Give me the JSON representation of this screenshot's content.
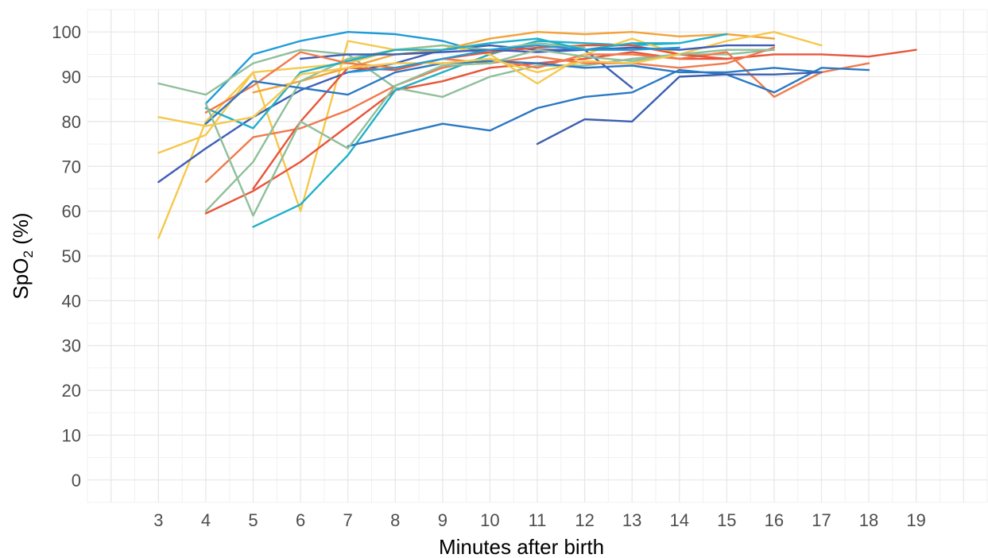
{
  "chart_data": {
    "type": "line",
    "xlabel": "Minutes after birth",
    "ylabel_main": "SpO",
    "ylabel_sub": "2",
    "ylabel_suffix": " (%)",
    "xlim": [
      1.5,
      20.5
    ],
    "ylim": [
      -5,
      105
    ],
    "x_ticks": [
      3,
      4,
      5,
      6,
      7,
      8,
      9,
      10,
      11,
      12,
      13,
      14,
      15,
      16,
      17,
      18,
      19
    ],
    "y_ticks": [
      0,
      10,
      20,
      30,
      40,
      50,
      60,
      70,
      80,
      90,
      100
    ],
    "grid": true,
    "legend": "none",
    "series": [
      {
        "color": "#1f9bd7",
        "x": [
          4,
          5,
          6,
          7,
          8,
          9,
          10
        ],
        "y": [
          84,
          95,
          98,
          100,
          99.5,
          98,
          95
        ]
      },
      {
        "color": "#f5c84c",
        "x": [
          3,
          4,
          5,
          6,
          7,
          8,
          9
        ],
        "y": [
          54,
          80,
          91,
          60,
          98,
          96,
          97
        ]
      },
      {
        "color": "#e8553a",
        "x": [
          4,
          5,
          6,
          7,
          8,
          9,
          10,
          11,
          12,
          13,
          14,
          15,
          16,
          17,
          18,
          19
        ],
        "y": [
          59.5,
          64.5,
          71,
          79,
          87,
          89,
          92,
          93,
          94,
          95.5,
          94,
          94,
          95,
          95,
          94.5,
          96
        ]
      },
      {
        "color": "#3f5fb5",
        "x": [
          3,
          4,
          5,
          6,
          7,
          8,
          9,
          10,
          11,
          12,
          13
        ],
        "y": [
          66.5,
          74,
          81,
          87,
          91,
          93,
          96,
          97,
          96,
          96,
          87.5
        ]
      },
      {
        "color": "#8fbf9a",
        "x": [
          3,
          4,
          5,
          6,
          7,
          8,
          9,
          10,
          11,
          12,
          13,
          14,
          15,
          16
        ],
        "y": [
          88.5,
          86,
          93,
          96,
          95,
          87.5,
          85.5,
          90,
          92.5,
          92.5,
          94,
          95,
          95,
          96
        ]
      },
      {
        "color": "#f07a4c",
        "x": [
          4,
          5,
          6,
          7,
          8,
          9,
          10,
          11,
          12,
          13,
          14,
          15,
          16,
          17,
          18
        ],
        "y": [
          66.5,
          76.5,
          78.5,
          82.5,
          88,
          92,
          94,
          92,
          95,
          95,
          94,
          95.5,
          85.5,
          91,
          93
        ]
      },
      {
        "color": "#1fb0c8",
        "x": [
          5,
          6,
          7,
          8,
          9,
          10,
          11,
          12,
          13,
          14
        ],
        "y": [
          56.5,
          61.5,
          72.5,
          87,
          91,
          95,
          98,
          97.5,
          97,
          97.5
        ]
      },
      {
        "color": "#2b78c4",
        "x": [
          7,
          8,
          9,
          10,
          11,
          12,
          13,
          14,
          15,
          16,
          17,
          18
        ],
        "y": [
          74.5,
          77,
          79.5,
          78,
          83,
          85.5,
          86.5,
          91.5,
          90.5,
          86.5,
          92,
          91.5
        ]
      },
      {
        "color": "#3a5fb0",
        "x": [
          11,
          12,
          13,
          14,
          15,
          16,
          17
        ],
        "y": [
          75,
          80.5,
          80,
          90,
          90.5,
          90.5,
          91
        ]
      },
      {
        "color": "#f2a33a",
        "x": [
          5,
          6,
          7,
          8,
          9,
          10,
          11,
          12,
          13,
          14,
          15,
          16
        ],
        "y": [
          86.5,
          89,
          92,
          95,
          96,
          98.5,
          100,
          99.5,
          100,
          99,
          99.5,
          98.5
        ]
      },
      {
        "color": "#f5c84c",
        "x": [
          3,
          4,
          5,
          6,
          7,
          8,
          9,
          10,
          11,
          12,
          13,
          14,
          15,
          16,
          17
        ],
        "y": [
          73,
          77,
          91,
          92,
          93,
          96,
          97,
          95,
          88.5,
          95,
          98.5,
          95,
          98,
          100,
          97
        ]
      },
      {
        "color": "#e8553a",
        "x": [
          5,
          6,
          7,
          8,
          9,
          10,
          11,
          12,
          13,
          14,
          15
        ],
        "y": [
          65,
          80,
          92,
          91.5,
          94,
          95.5,
          96.5,
          97,
          97,
          95,
          94
        ]
      },
      {
        "color": "#8fbf9a",
        "x": [
          4,
          5,
          6,
          7,
          8,
          9,
          10,
          11,
          12
        ],
        "y": [
          60,
          71,
          89,
          94,
          96,
          97,
          96,
          97.5,
          96.5
        ]
      },
      {
        "color": "#1fb0c8",
        "x": [
          4,
          5,
          6,
          7,
          8,
          9,
          10,
          11,
          12,
          13,
          14,
          15
        ],
        "y": [
          83,
          78.5,
          91,
          93.5,
          96,
          96,
          97.5,
          98.5,
          96,
          97.5,
          97.5,
          99.5
        ]
      },
      {
        "color": "#3f5fb5",
        "x": [
          6,
          7,
          8,
          9,
          10,
          11,
          12,
          13,
          14,
          15,
          16
        ],
        "y": [
          94,
          95,
          95,
          95.5,
          96,
          95.5,
          96,
          96.5,
          96,
          97,
          97
        ]
      },
      {
        "color": "#f07a4c",
        "x": [
          4,
          5,
          6,
          7,
          8,
          9,
          10,
          11,
          12,
          13,
          14,
          15,
          16
        ],
        "y": [
          82,
          88,
          95.5,
          93,
          92,
          94,
          93,
          94.5,
          93,
          93,
          92,
          93,
          96.5
        ]
      },
      {
        "color": "#2b78c4",
        "x": [
          4,
          5,
          6,
          7,
          8,
          9,
          10,
          11,
          12,
          13,
          14,
          15,
          16,
          17
        ],
        "y": [
          79.5,
          89,
          87.5,
          86,
          91,
          93,
          93.5,
          93,
          92,
          92.5,
          91,
          91,
          92,
          91
        ]
      },
      {
        "color": "#8fbf9a",
        "x": [
          4,
          5,
          6,
          7,
          8,
          9,
          10,
          11,
          12,
          13,
          14,
          15,
          16
        ],
        "y": [
          84,
          59,
          80,
          74,
          88,
          92.5,
          93,
          96,
          94.5,
          93.5,
          95,
          96,
          96
        ]
      },
      {
        "color": "#f5c84c",
        "x": [
          3,
          4,
          5,
          6,
          7,
          8,
          9,
          10,
          11,
          12,
          13,
          14
        ],
        "y": [
          81,
          79,
          81,
          90.5,
          92,
          93,
          93,
          94,
          91,
          93.5,
          93,
          95
        ]
      },
      {
        "color": "#1f9bd7",
        "x": [
          7,
          8,
          9,
          10,
          11,
          12,
          13,
          14
        ],
        "y": [
          91,
          92,
          94,
          96,
          97,
          96,
          96,
          96.5
        ]
      }
    ]
  }
}
